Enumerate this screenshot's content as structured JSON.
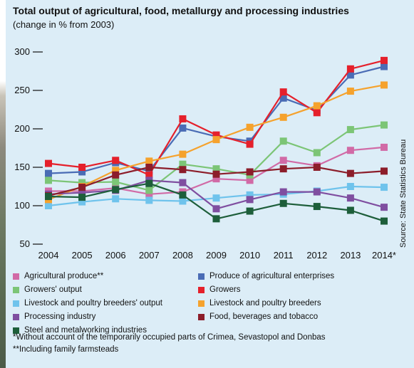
{
  "page": {
    "title": "Total output of agricultural, food, metallurgy and processing industries",
    "subtitle": "(change in % from 2003)",
    "source": "Source: State Statistics Bureau",
    "footnotes": [
      "*Without account of the temporarily occupied parts of Crimea, Sevastopol and Donbas",
      "**Including family farmsteads"
    ]
  },
  "chart_data": {
    "type": "line",
    "title": "Total output of agricultural, food, metallurgy and processing industries",
    "subtitle": "(change in % from 2003)",
    "xlabel": "",
    "ylabel": "",
    "categories": [
      "2004",
      "2005",
      "2006",
      "2007",
      "2008",
      "2009",
      "2010",
      "2011",
      "2012",
      "2013",
      "2014*"
    ],
    "ylim": [
      50,
      300
    ],
    "yticks": [
      50,
      100,
      150,
      200,
      250,
      300
    ],
    "grid": false,
    "legend_position": "bottom",
    "series": [
      {
        "name": "Agricultural produce**",
        "color": "#d16aa6",
        "values": [
          119,
          119,
          123,
          115,
          118,
          135,
          133,
          159,
          152,
          172,
          176
        ]
      },
      {
        "name": "Produce of agricultural enterprises",
        "color": "#4a6cb5",
        "values": [
          142,
          144,
          156,
          145,
          201,
          190,
          184,
          240,
          224,
          270,
          281
        ]
      },
      {
        "name": "Growers' output",
        "color": "#7cc576",
        "values": [
          133,
          130,
          131,
          120,
          154,
          148,
          140,
          184,
          169,
          199,
          205
        ]
      },
      {
        "name": "Growers",
        "color": "#e5202b",
        "values": [
          155,
          150,
          159,
          140,
          213,
          192,
          180,
          248,
          221,
          278,
          289
        ]
      },
      {
        "name": "Livestock and poultry breeders' output",
        "color": "#6fc3ec",
        "values": [
          100,
          105,
          109,
          107,
          106,
          110,
          114,
          115,
          119,
          125,
          124
        ]
      },
      {
        "name": "Livestock and poultry breeders",
        "color": "#f5a22d",
        "values": [
          108,
          125,
          146,
          158,
          167,
          186,
          202,
          215,
          230,
          249,
          257
        ]
      },
      {
        "name": "Processing industry",
        "color": "#7f4ea0",
        "values": [
          115,
          117,
          120,
          133,
          130,
          96,
          108,
          118,
          118,
          110,
          98
        ]
      },
      {
        "name": "Food, beverages and tobacco",
        "color": "#8c1d2a",
        "values": [
          113,
          124,
          140,
          150,
          147,
          141,
          144,
          148,
          150,
          142,
          145
        ]
      },
      {
        "name": "Steel and metalworking industries",
        "color": "#1d5e3a",
        "values": [
          112,
          111,
          121,
          129,
          114,
          83,
          93,
          103,
          99,
          94,
          80
        ]
      }
    ]
  }
}
